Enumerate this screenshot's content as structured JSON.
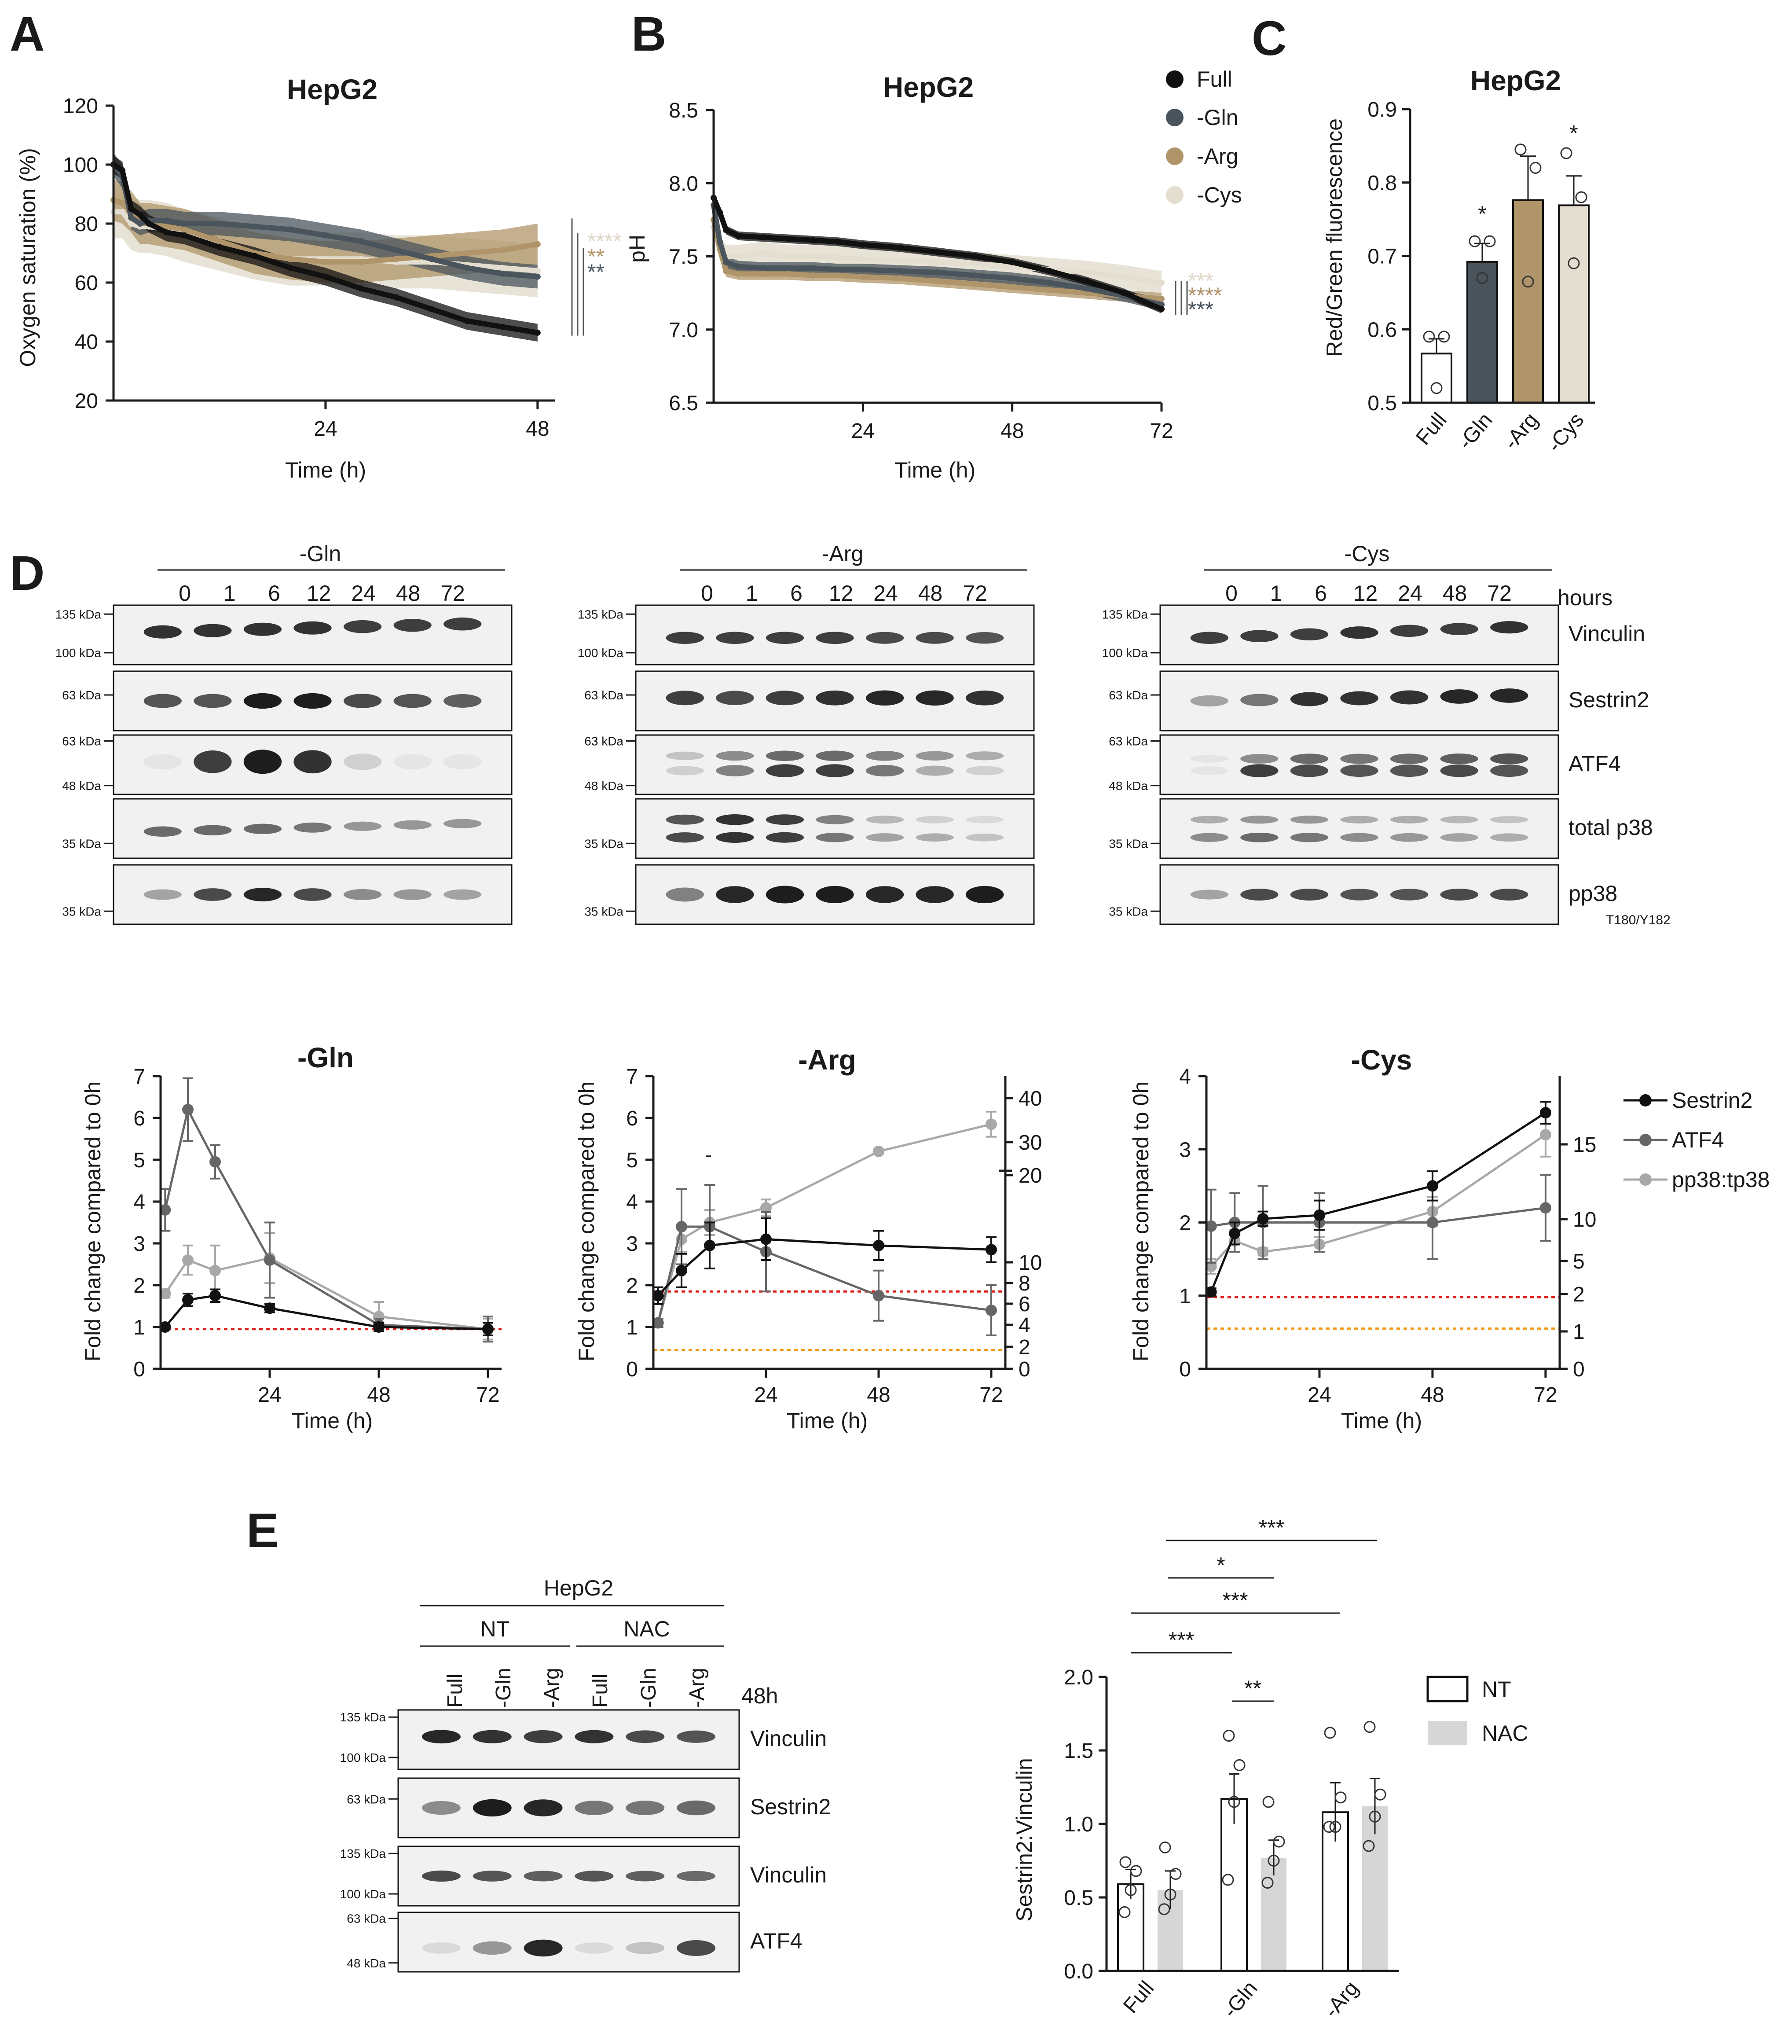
{
  "panels": {
    "A": "A",
    "B": "B",
    "C": "C",
    "D": "D",
    "E": "E"
  },
  "colors": {
    "full": "#111111",
    "gln": "#4a545c",
    "arg": "#b0956a",
    "cys": "#e4ded0",
    "sestrin2": "#111111",
    "atf4": "#666666",
    "pp38": "#a8a8a8",
    "red_dot": "#e0201b",
    "orange_dot": "#f29a1a",
    "nac": "#d6d6d6"
  },
  "legendAB": [
    "Full",
    "-Gln",
    "-Arg",
    "-Cys"
  ],
  "chart_data": [
    {
      "id": "A",
      "type": "line",
      "title": "HepG2",
      "xlabel": "Time (h)",
      "ylabel": "Oxygen saturation (%)",
      "xlim": [
        0,
        50
      ],
      "ylim": [
        20,
        120
      ],
      "xticks": [
        "24",
        "48"
      ],
      "yticks": [
        "20",
        "40",
        "60",
        "80",
        "100",
        "120"
      ],
      "series": [
        {
          "name": "Full",
          "x": [
            0,
            1,
            2,
            3,
            4,
            6,
            8,
            12,
            16,
            20,
            24,
            28,
            32,
            36,
            40,
            44,
            48
          ],
          "y": [
            100,
            98,
            85,
            83,
            80,
            77,
            76,
            72,
            69,
            65,
            62,
            58,
            55,
            51,
            47,
            45,
            43
          ]
        },
        {
          "name": "-Gln",
          "x": [
            0,
            1,
            2,
            3,
            4,
            6,
            8,
            12,
            16,
            20,
            24,
            28,
            32,
            36,
            40,
            44,
            48
          ],
          "y": [
            100,
            96,
            82,
            80,
            81,
            81,
            80,
            80,
            79,
            78,
            76,
            74,
            71,
            68,
            65,
            63,
            62
          ]
        },
        {
          "name": "-Arg",
          "x": [
            0,
            1,
            2,
            3,
            4,
            6,
            8,
            12,
            16,
            20,
            24,
            28,
            32,
            36,
            40,
            44,
            48
          ],
          "y": [
            88,
            87,
            84,
            80,
            80,
            79,
            78,
            74,
            70,
            68,
            67,
            67,
            68,
            69,
            70,
            71,
            73
          ]
        },
        {
          "name": "-Cys",
          "x": [
            0,
            1,
            2,
            3,
            4,
            6,
            8,
            12,
            16,
            20,
            24,
            28,
            32,
            36,
            40,
            44,
            48
          ],
          "y": [
            84,
            84,
            80,
            79,
            79,
            78,
            76,
            73,
            70,
            68,
            68,
            68,
            67,
            67,
            66,
            65,
            64
          ]
        }
      ],
      "significance": [
        {
          "label": "****",
          "color": "#ddd6c6"
        },
        {
          "label": "**",
          "color": "#b0956a"
        },
        {
          "label": "**",
          "color": "#4a545c"
        }
      ]
    },
    {
      "id": "B",
      "type": "line",
      "title": "HepG2",
      "xlabel": "Time (h)",
      "ylabel": "pH",
      "xlim": [
        0,
        72
      ],
      "ylim": [
        6.5,
        8.5
      ],
      "xticks": [
        "24",
        "48",
        "72"
      ],
      "yticks": [
        "6.5",
        "7.0",
        "7.5",
        "8.0",
        "8.5"
      ],
      "series": [
        {
          "name": "Full",
          "x": [
            0,
            1,
            2,
            4,
            8,
            12,
            16,
            20,
            24,
            30,
            36,
            42,
            48,
            54,
            60,
            66,
            72
          ],
          "y": [
            7.9,
            7.8,
            7.68,
            7.64,
            7.63,
            7.62,
            7.61,
            7.6,
            7.58,
            7.56,
            7.53,
            7.5,
            7.46,
            7.4,
            7.33,
            7.25,
            7.14
          ]
        },
        {
          "name": "-Gln",
          "x": [
            0,
            1,
            2,
            4,
            8,
            12,
            16,
            20,
            24,
            30,
            36,
            42,
            48,
            54,
            60,
            66,
            72
          ],
          "y": [
            7.85,
            7.6,
            7.46,
            7.43,
            7.42,
            7.42,
            7.42,
            7.41,
            7.41,
            7.4,
            7.39,
            7.37,
            7.35,
            7.32,
            7.28,
            7.23,
            7.17
          ]
        },
        {
          "name": "-Arg",
          "x": [
            0,
            1,
            2,
            4,
            8,
            12,
            16,
            20,
            24,
            30,
            36,
            42,
            48,
            54,
            60,
            66,
            72
          ],
          "y": [
            7.75,
            7.55,
            7.4,
            7.38,
            7.38,
            7.38,
            7.37,
            7.37,
            7.36,
            7.35,
            7.33,
            7.31,
            7.29,
            7.27,
            7.25,
            7.23,
            7.21
          ]
        },
        {
          "name": "-Cys",
          "x": [
            0,
            1,
            2,
            4,
            8,
            12,
            16,
            20,
            24,
            30,
            36,
            42,
            48,
            54,
            60,
            66,
            72
          ],
          "y": [
            7.7,
            7.55,
            7.5,
            7.5,
            7.52,
            7.5,
            7.5,
            7.49,
            7.48,
            7.47,
            7.46,
            7.45,
            7.43,
            7.41,
            7.39,
            7.36,
            7.32
          ]
        }
      ],
      "significance": [
        {
          "label": "***",
          "color": "#ddd6c6"
        },
        {
          "label": "****",
          "color": "#b0956a"
        },
        {
          "label": "***",
          "color": "#4a545c"
        }
      ]
    },
    {
      "id": "C",
      "type": "bar",
      "title": "HepG2",
      "ylabel": "Red/Green fluorescence",
      "ylim": [
        0.5,
        0.9
      ],
      "yticks": [
        "0.5",
        "0.6",
        "0.7",
        "0.8",
        "0.9"
      ],
      "categories": [
        "Full",
        "-Gln",
        "-Arg",
        "-Cys"
      ],
      "values": [
        0.567,
        0.692,
        0.776,
        0.769
      ],
      "errors": [
        0.02,
        0.025,
        0.06,
        0.04
      ],
      "points": [
        [
          0.59,
          0.59,
          0.52
        ],
        [
          0.72,
          0.72,
          0.67
        ],
        [
          0.845,
          0.82,
          0.665
        ],
        [
          0.84,
          0.78,
          0.69
        ]
      ],
      "significance": [
        "",
        "*",
        "",
        "*"
      ]
    },
    {
      "id": "D-Gln",
      "type": "line",
      "title": "-Gln",
      "xlabel": "Time (h)",
      "ylabel": "Fold change compared to 0h",
      "xlim": [
        0,
        75
      ],
      "ylim": [
        0,
        7
      ],
      "xticks": [
        "24",
        "48",
        "72"
      ],
      "yticks": [
        "0",
        "1",
        "2",
        "3",
        "4",
        "5",
        "6",
        "7"
      ],
      "series": [
        {
          "name": "Sestrin2",
          "x": [
            1,
            6,
            12,
            24,
            48,
            72
          ],
          "y": [
            1.0,
            1.65,
            1.75,
            1.45,
            1.0,
            0.95
          ],
          "err": [
            0.05,
            0.15,
            0.15,
            0.1,
            0.1,
            0.15
          ]
        },
        {
          "name": "ATF4",
          "x": [
            1,
            6,
            12,
            24,
            48,
            72
          ],
          "y": [
            3.8,
            6.2,
            4.95,
            2.6,
            1.05,
            0.95
          ],
          "err": [
            0.5,
            0.75,
            0.4,
            0.9,
            0.15,
            0.3
          ]
        },
        {
          "name": "pp38:tp38",
          "x": [
            1,
            6,
            12,
            24,
            48,
            72
          ],
          "y": [
            1.8,
            2.6,
            2.35,
            2.65,
            1.25,
            0.95
          ],
          "err": [
            0.1,
            0.35,
            0.6,
            0.6,
            0.35,
            0.25
          ]
        }
      ]
    },
    {
      "id": "D-Arg",
      "type": "line",
      "title": "-Arg",
      "xlabel": "Time (h)",
      "ylabel": "Fold change compared to 0h",
      "xlim": [
        0,
        75
      ],
      "ylim": [
        0,
        7
      ],
      "xticks": [
        "24",
        "48",
        "72"
      ],
      "yticks": [
        "0",
        "1",
        "2",
        "3",
        "4",
        "5",
        "6",
        "7"
      ],
      "y2ticks": [
        "0",
        "2",
        "4",
        "6",
        "8",
        "10",
        "20",
        "30",
        "40"
      ],
      "series": [
        {
          "name": "Sestrin2",
          "x": [
            1,
            6,
            12,
            24,
            48,
            72
          ],
          "y": [
            1.75,
            2.35,
            2.95,
            3.1,
            2.95,
            2.85
          ],
          "err": [
            0.2,
            0.4,
            0.55,
            0.5,
            0.35,
            0.3
          ]
        },
        {
          "name": "ATF4",
          "x": [
            1,
            6,
            12,
            24,
            48,
            72
          ],
          "y": [
            1.1,
            3.4,
            3.4,
            2.8,
            1.75,
            1.4
          ],
          "err": [
            0.1,
            0.9,
            1.0,
            0.95,
            0.6,
            0.6
          ]
        },
        {
          "name": "pp38:tp38",
          "x": [
            1,
            6,
            12,
            24,
            48,
            72
          ],
          "y": [
            1.1,
            3.1,
            3.5,
            3.85,
            5.2,
            5.85
          ],
          "err": [
            0.1,
            0.3,
            0.3,
            0.2,
            0.05,
            0.3
          ]
        }
      ],
      "refLines": [
        {
          "y": 1.85,
          "color": "red"
        },
        {
          "y": 0.45,
          "color": "orange"
        }
      ]
    },
    {
      "id": "D-Cys",
      "type": "line",
      "title": "-Cys",
      "xlabel": "Time (h)",
      "ylabel": "Fold change compared to 0h",
      "xlim": [
        0,
        75
      ],
      "ylim": [
        0,
        4
      ],
      "xticks": [
        "24",
        "48",
        "72"
      ],
      "yticks": [
        "0",
        "1",
        "2",
        "3",
        "4"
      ],
      "y2ticks": [
        "0",
        "1",
        "2",
        "5",
        "10",
        "15"
      ],
      "series": [
        {
          "name": "Sestrin2",
          "x": [
            1,
            6,
            12,
            24,
            48,
            72
          ],
          "y": [
            1.05,
            1.85,
            2.05,
            2.1,
            2.5,
            3.5
          ],
          "err": [
            0.05,
            0.15,
            0.1,
            0.2,
            0.2,
            0.15
          ]
        },
        {
          "name": "ATF4",
          "x": [
            1,
            6,
            12,
            24,
            48,
            72
          ],
          "y": [
            1.95,
            2.0,
            2.0,
            2.0,
            2.0,
            2.2
          ],
          "err": [
            0.5,
            0.4,
            0.5,
            0.4,
            0.5,
            0.45
          ]
        },
        {
          "name": "pp38:tp38",
          "x": [
            1,
            6,
            12,
            24,
            48,
            72
          ],
          "y": [
            1.4,
            1.75,
            1.6,
            1.7,
            2.15,
            3.2
          ],
          "err": [
            0.1,
            0.15,
            0.05,
            0.1,
            0.2,
            0.3
          ]
        }
      ],
      "refLines": [
        {
          "y": 0.98,
          "color": "red"
        },
        {
          "y": 0.55,
          "color": "orange"
        }
      ]
    },
    {
      "id": "E",
      "type": "bar",
      "ylabel": "Sestrin2:Vinculin",
      "ylim": [
        0,
        2.0
      ],
      "yticks": [
        "0.0",
        "0.5",
        "1.0",
        "1.5",
        "2.0"
      ],
      "categories": [
        "Full",
        "-Gln",
        "-Arg"
      ],
      "series": [
        {
          "name": "NT",
          "values": [
            0.59,
            1.17,
            1.08
          ],
          "errors": [
            0.1,
            0.17,
            0.2
          ],
          "points": [
            [
              0.74,
              0.68,
              0.55,
              0.4
            ],
            [
              1.6,
              1.4,
              1.15,
              0.62
            ],
            [
              1.62,
              1.18,
              0.98,
              0.98
            ]
          ]
        },
        {
          "name": "NAC",
          "values": [
            0.55,
            0.77,
            1.12
          ],
          "errors": [
            0.13,
            0.12,
            0.19
          ],
          "points": [
            [
              0.84,
              0.66,
              0.52,
              0.42
            ],
            [
              1.15,
              0.88,
              0.75,
              0.6
            ],
            [
              1.66,
              1.2,
              1.05,
              0.85
            ]
          ]
        }
      ],
      "brackets": [
        "***",
        "*",
        "***",
        "***",
        "**"
      ]
    }
  ],
  "panelD": {
    "groups": [
      "-Gln",
      "-Arg",
      "-Cys"
    ],
    "times": [
      "0",
      "1",
      "6",
      "12",
      "24",
      "48",
      "72"
    ],
    "hours_label": "hours",
    "rows": [
      {
        "name": "Vinculin",
        "mw": [
          "135 kDa",
          "100 kDa"
        ]
      },
      {
        "name": "Sestrin2",
        "mw": [
          "63 kDa"
        ]
      },
      {
        "name": "ATF4",
        "mw": [
          "63 kDa",
          "48 kDa"
        ]
      },
      {
        "name": "total p38",
        "mw": [
          "35 kDa"
        ]
      },
      {
        "name": "pp38",
        "sub": "T180/Y182",
        "mw": [
          "35 kDa"
        ]
      }
    ],
    "legend": [
      "Sestrin2",
      "ATF4",
      "pp38:tp38"
    ],
    "dash": "-"
  },
  "panelE": {
    "cell": "HepG2",
    "conditions": [
      "NT",
      "NAC"
    ],
    "lanes": [
      "Full",
      "-Gln",
      "-Arg",
      "Full",
      "-Gln",
      "-Arg"
    ],
    "time": "48h",
    "rows": [
      {
        "name": "Vinculin",
        "mw": [
          "135 kDa",
          "100 kDa"
        ]
      },
      {
        "name": "Sestrin2",
        "mw": [
          "63 kDa"
        ]
      },
      {
        "name": "Vinculin",
        "mw": [
          "135 kDa",
          "100 kDa"
        ]
      },
      {
        "name": "ATF4",
        "mw": [
          "63 kDa",
          "48 kDa"
        ]
      }
    ],
    "legend": [
      "NT",
      "NAC"
    ]
  }
}
